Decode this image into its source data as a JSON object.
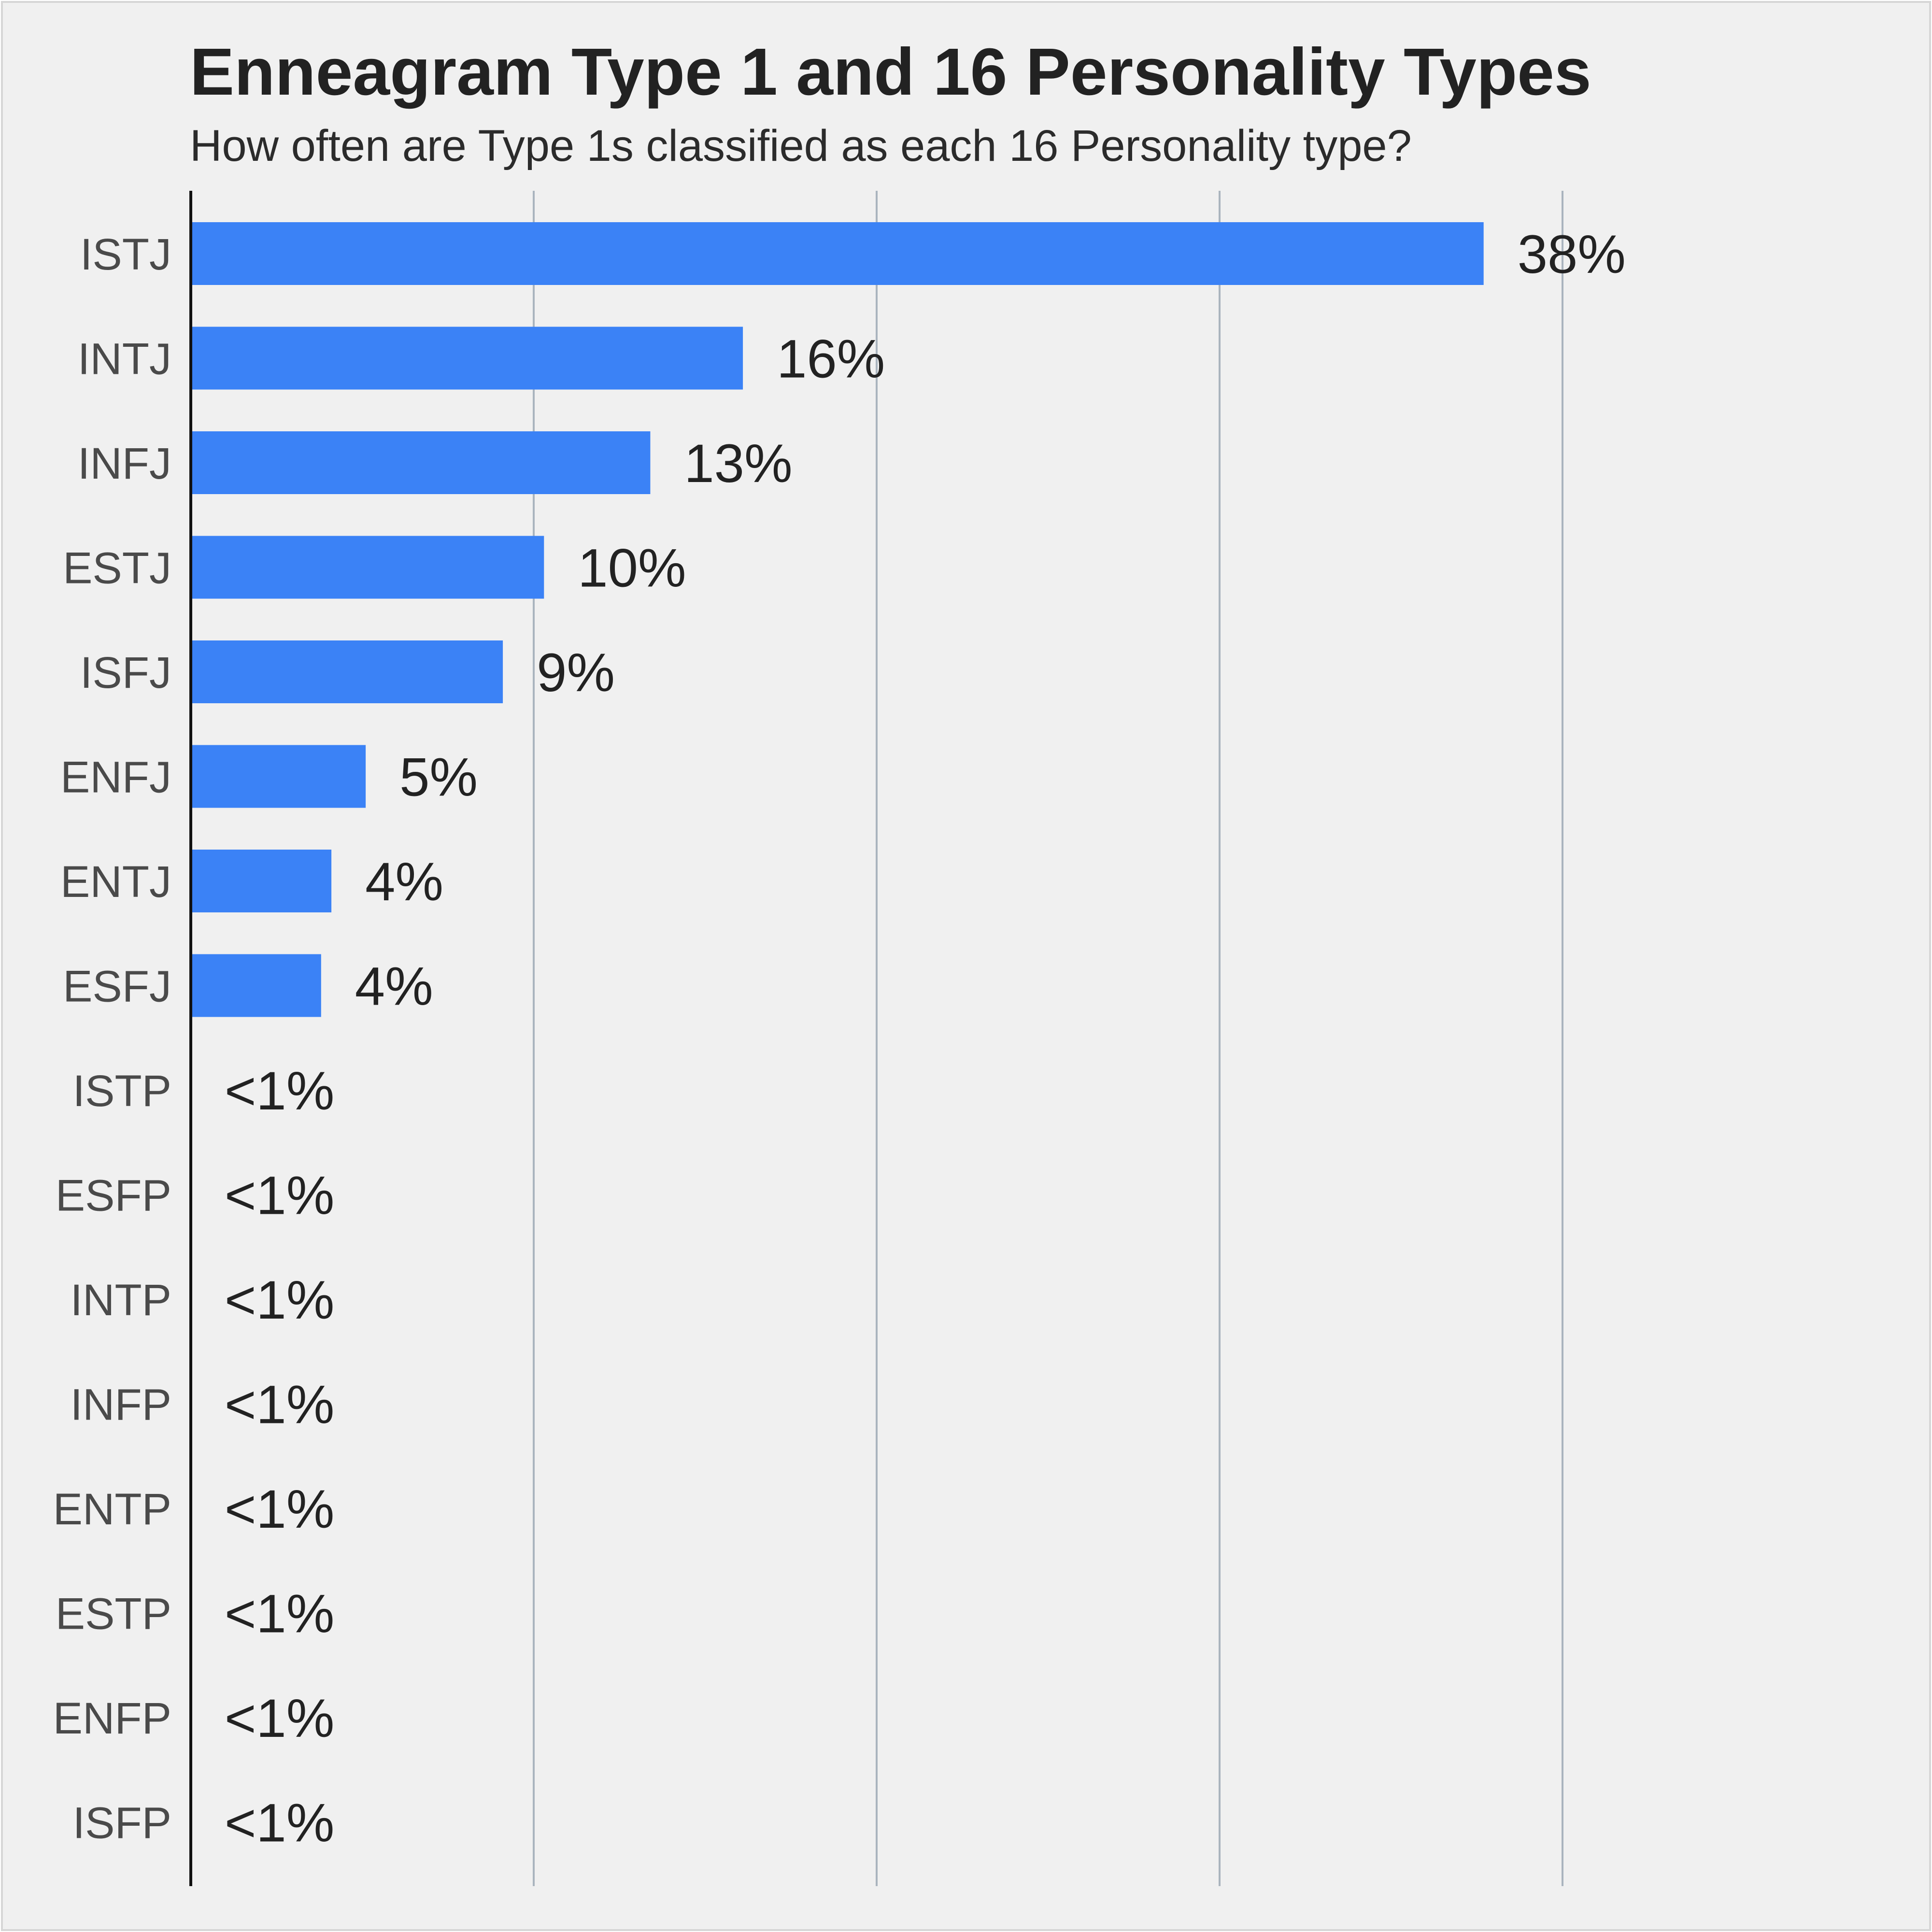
{
  "colors": {
    "background": "#f0f0f0",
    "bar": "#3b82f6",
    "gridline": "#aab4be",
    "axis": "#111111",
    "title": "#222222",
    "label": "#4a4a4a"
  },
  "chart_data": {
    "type": "bar",
    "orientation": "horizontal",
    "title": "Enneagram Type 1 and 16 Personality Types",
    "subtitle": "How often are Type 1s classified as each 16 Personality type?",
    "xlabel": "",
    "ylabel": "",
    "xlim": [
      0,
      50
    ],
    "grid": true,
    "gridline_values": [
      10,
      20,
      30,
      40
    ],
    "categories": [
      "ISTJ",
      "INTJ",
      "INFJ",
      "ESTJ",
      "ISFJ",
      "ENFJ",
      "ENTJ",
      "ESFJ",
      "ISTP",
      "ESFP",
      "INTP",
      "INFP",
      "ENTP",
      "ESTP",
      "ENFP",
      "ISFP"
    ],
    "values": [
      37.7,
      16.1,
      13.4,
      10.3,
      9.1,
      5.1,
      4.1,
      3.8,
      0,
      0,
      0,
      0,
      0,
      0,
      0,
      0
    ],
    "data_labels": [
      "38%",
      "16%",
      "13%",
      "10%",
      "9%",
      "5%",
      "4%",
      "4%",
      "<1%",
      "<1%",
      "<1%",
      "<1%",
      "<1%",
      "<1%",
      "<1%",
      "<1%"
    ]
  }
}
